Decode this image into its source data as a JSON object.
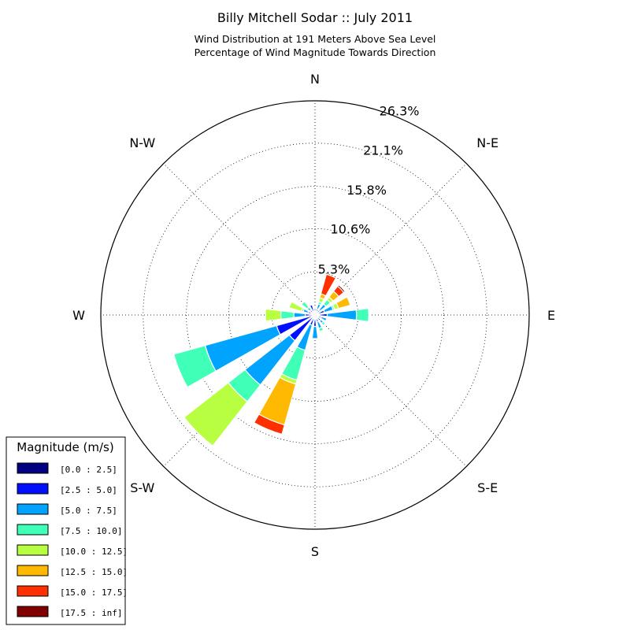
{
  "chart_data": {
    "type": "windrose",
    "title": "Billy Mitchell Sodar :: July 2011",
    "subtitle_lines": [
      "Wind Distribution at 191 Meters Above Sea Level",
      "Percentage of Wind Magnitude Towards Direction"
    ],
    "directions": [
      {
        "name": "N",
        "deg": 0
      },
      {
        "name": "N-E",
        "deg": 45
      },
      {
        "name": "E",
        "deg": 90
      },
      {
        "name": "S-E",
        "deg": 135
      },
      {
        "name": "S",
        "deg": 180
      },
      {
        "name": "S-W",
        "deg": 225
      },
      {
        "name": "W",
        "deg": 270
      },
      {
        "name": "N-W",
        "deg": 315
      }
    ],
    "rmax": 26.3,
    "ring_values": [
      5.3,
      10.6,
      15.8,
      21.1,
      26.3
    ],
    "ring_labels": [
      "5.3%",
      "10.6%",
      "15.8%",
      "21.1%",
      "26.3%"
    ],
    "grid": true,
    "legend": {
      "title": "Magnitude (m/s)",
      "placement": "bottom-left",
      "bins": [
        {
          "label": "[0.0 : 2.5]",
          "color": "#000080"
        },
        {
          "label": "[2.5 : 5.0]",
          "color": "#0010ff"
        },
        {
          "label": "[5.0 : 7.5]",
          "color": "#00a4ff"
        },
        {
          "label": "[7.5 : 10.0]",
          "color": "#40ffb7"
        },
        {
          "label": "[10.0 : 12.5]",
          "color": "#b7ff40"
        },
        {
          "label": "[12.5 : 15.0]",
          "color": "#ffb900"
        },
        {
          "label": "[15.0 : 17.5]",
          "color": "#ff3000"
        },
        {
          "label": "[17.5 : inf]",
          "color": "#800000"
        }
      ]
    },
    "bar_width_deg": 14,
    "sectors": [
      {
        "deg": 0,
        "cumulative": [
          0.3,
          0.8
        ]
      },
      {
        "deg": 22.5,
        "cumulative": [
          0.3,
          0.8,
          1.4,
          1.7,
          2.2,
          2.7,
          5.2
        ]
      },
      {
        "deg": 45,
        "cumulative": [
          0.3,
          0.8,
          1.7,
          2.4,
          2.8,
          3.7,
          4.5,
          4.7
        ]
      },
      {
        "deg": 67.5,
        "cumulative": [
          0.3,
          1.2,
          2.3,
          2.5,
          3.0,
          4.5
        ]
      },
      {
        "deg": 90,
        "cumulative": [
          0.3,
          1.5,
          5.1,
          6.6
        ]
      },
      {
        "deg": 112.5,
        "cumulative": [
          0.2,
          0.8,
          1.5
        ]
      },
      {
        "deg": 135,
        "cumulative": [
          0.3,
          0.9,
          1.3,
          1.6
        ]
      },
      {
        "deg": 157.5,
        "cumulative": [
          0.3,
          0.9,
          1.7,
          2.1
        ]
      },
      {
        "deg": 180,
        "cumulative": [
          0.3,
          1.4,
          2.9
        ]
      },
      {
        "deg": 202.5,
        "cumulative": [
          0.3,
          1.3,
          4.5,
          8.3,
          8.8,
          14.0,
          15.2
        ]
      },
      {
        "deg": 225,
        "cumulative": [
          0.3,
          4.0,
          10.9,
          13.5,
          20.4
        ]
      },
      {
        "deg": 247.5,
        "cumulative": [
          0.3,
          4.9,
          14.0,
          18.0
        ]
      },
      {
        "deg": 270,
        "cumulative": [
          0.3,
          1.2,
          2.6,
          4.2,
          6.1
        ]
      },
      {
        "deg": 292.5,
        "cumulative": [
          0.3,
          0.9,
          1.5,
          1.7,
          3.3
        ]
      },
      {
        "deg": 315,
        "cumulative": [
          0.3,
          0.8,
          1.2,
          2.1
        ]
      },
      {
        "deg": 337.5,
        "cumulative": [
          0.3,
          1.3
        ]
      }
    ]
  }
}
